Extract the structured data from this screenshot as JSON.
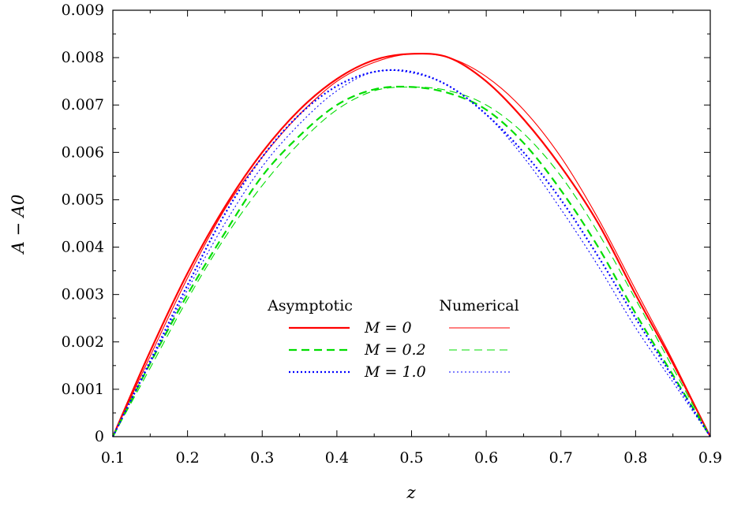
{
  "chart_data": {
    "type": "line",
    "title": "",
    "xlabel": "z",
    "ylabel": "A − A0",
    "xlim": [
      0.1,
      0.9
    ],
    "ylim": [
      0,
      0.009
    ],
    "grid": false,
    "xticks": [
      "0.1",
      "0.2",
      "0.3",
      "0.4",
      "0.5",
      "0.6",
      "0.7",
      "0.8",
      "0.9"
    ],
    "yticks": [
      "0",
      "0.001",
      "0.002",
      "0.003",
      "0.004",
      "0.005",
      "0.006",
      "0.007",
      "0.008",
      "0.009"
    ],
    "legend": {
      "placement": "center-bottom",
      "column_headers": [
        "Asymptotic",
        "Numerical"
      ],
      "row_labels": [
        "M = 0",
        "M = 0.2",
        "M = 1.0"
      ]
    },
    "series": [
      {
        "name": "M = 0",
        "method": "Asymptotic",
        "color": "#ff0000",
        "dash": "solid",
        "x": [
          0.1,
          0.15,
          0.2,
          0.25,
          0.3,
          0.35,
          0.4,
          0.45,
          0.5,
          0.55,
          0.6,
          0.65,
          0.7,
          0.75,
          0.8,
          0.85,
          0.9
        ],
        "y": [
          0.0,
          0.0018,
          0.00345,
          0.00485,
          0.006,
          0.0069,
          0.00755,
          0.00795,
          0.00808,
          0.008,
          0.0075,
          0.0067,
          0.0057,
          0.0045,
          0.003,
          0.00155,
          0.0
        ]
      },
      {
        "name": "M = 0",
        "method": "Numerical",
        "color": "#ff0000",
        "dash": "thin-solid",
        "x": [
          0.1,
          0.15,
          0.2,
          0.25,
          0.3,
          0.35,
          0.4,
          0.45,
          0.5,
          0.55,
          0.6,
          0.65,
          0.7,
          0.75,
          0.8,
          0.85,
          0.9
        ],
        "y": [
          0.0,
          0.0017,
          0.00335,
          0.0048,
          0.0059,
          0.0068,
          0.0075,
          0.0079,
          0.00808,
          0.008,
          0.0076,
          0.0069,
          0.0059,
          0.0046,
          0.0031,
          0.0016,
          0.0
        ]
      },
      {
        "name": "M = 0.2",
        "method": "Asymptotic",
        "color": "#00dd00",
        "dash": "dashed",
        "x": [
          0.1,
          0.15,
          0.2,
          0.25,
          0.3,
          0.35,
          0.4,
          0.45,
          0.5,
          0.55,
          0.6,
          0.65,
          0.7,
          0.75,
          0.8,
          0.85,
          0.9
        ],
        "y": [
          0.0,
          0.00155,
          0.003,
          0.0043,
          0.0055,
          0.00635,
          0.007,
          0.00733,
          0.00738,
          0.00725,
          0.0069,
          0.0062,
          0.0052,
          0.004,
          0.0026,
          0.0013,
          0.0
        ]
      },
      {
        "name": "M = 0.2",
        "method": "Numerical",
        "color": "#00dd00",
        "dash": "thin-dashed",
        "x": [
          0.1,
          0.15,
          0.2,
          0.25,
          0.3,
          0.35,
          0.4,
          0.45,
          0.5,
          0.55,
          0.6,
          0.65,
          0.7,
          0.75,
          0.8,
          0.85,
          0.9
        ],
        "y": [
          0.0,
          0.00145,
          0.0029,
          0.0042,
          0.0053,
          0.0062,
          0.0069,
          0.0073,
          0.00738,
          0.0073,
          0.007,
          0.0064,
          0.0055,
          0.0043,
          0.0029,
          0.00145,
          0.0
        ]
      },
      {
        "name": "M = 1.0",
        "method": "Asymptotic",
        "color": "#0000ff",
        "dash": "dotted",
        "x": [
          0.1,
          0.15,
          0.2,
          0.25,
          0.3,
          0.35,
          0.4,
          0.45,
          0.5,
          0.55,
          0.6,
          0.65,
          0.7,
          0.75,
          0.8,
          0.85,
          0.9
        ],
        "y": [
          0.0,
          0.0016,
          0.0032,
          0.0047,
          0.0059,
          0.0068,
          0.0074,
          0.0077,
          0.0077,
          0.0074,
          0.0068,
          0.006,
          0.005,
          0.0038,
          0.0025,
          0.00125,
          0.0
        ]
      },
      {
        "name": "M = 1.0",
        "method": "Numerical",
        "color": "#0000ff",
        "dash": "thin-dotted",
        "x": [
          0.1,
          0.15,
          0.2,
          0.25,
          0.3,
          0.35,
          0.4,
          0.45,
          0.5,
          0.55,
          0.6,
          0.65,
          0.7,
          0.75,
          0.8,
          0.85,
          0.9
        ],
        "y": [
          0.0,
          0.00155,
          0.0031,
          0.0045,
          0.0057,
          0.0066,
          0.0073,
          0.0077,
          0.00768,
          0.0074,
          0.0068,
          0.0059,
          0.0048,
          0.0036,
          0.0023,
          0.00115,
          0.0
        ]
      }
    ]
  }
}
